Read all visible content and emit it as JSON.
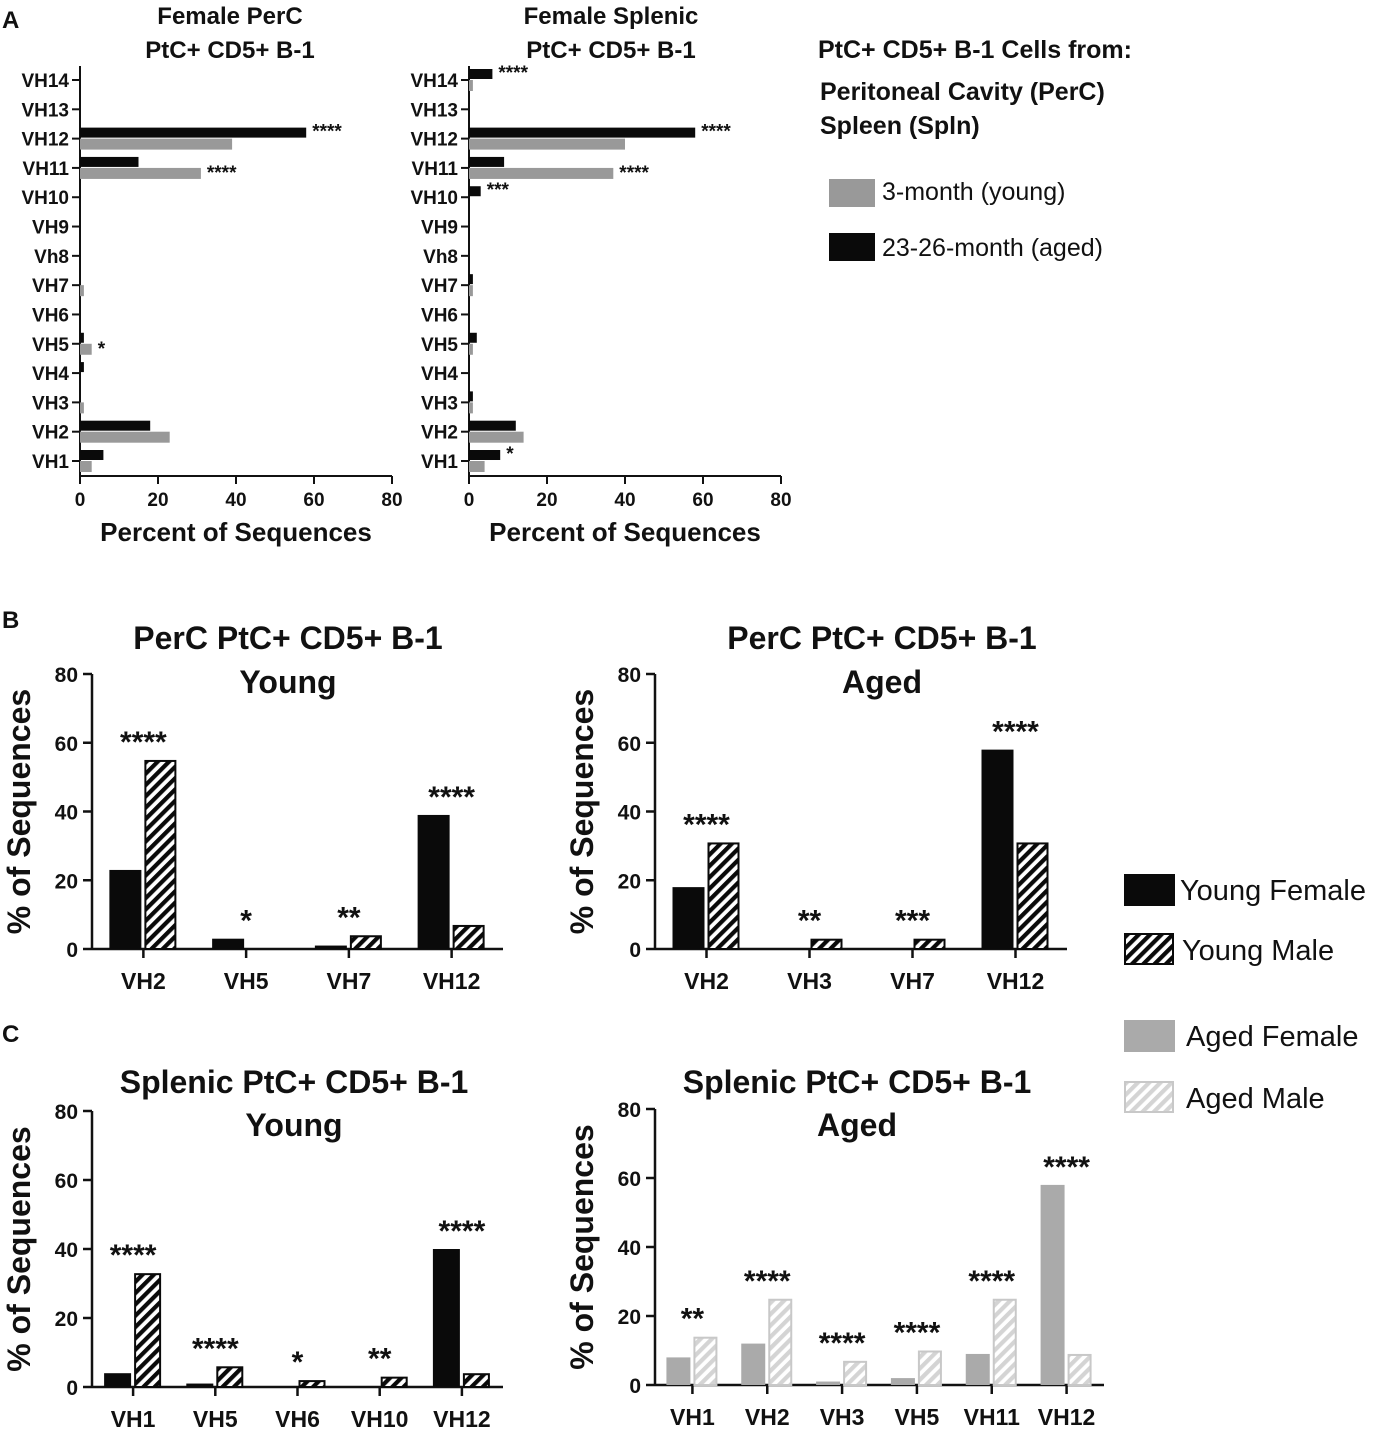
{
  "panel_labels": [
    "A",
    "B",
    "C"
  ],
  "colors": {
    "young": "#999999",
    "aged": "#0a0a0a",
    "hatch_dark": "#0a0a0a",
    "hatch_light": "#d4d4d4"
  },
  "legend_a": {
    "title": "PtC+ CD5+ B-1 Cells from:",
    "line1": "Peritoneal Cavity (PerC)",
    "line2": "Spleen (Spln)",
    "items": [
      "3-month (young)",
      "23-26-month (aged)"
    ]
  },
  "legend_bc": {
    "items": [
      "Young Female",
      "Young Male",
      "Aged Female",
      "Aged Male"
    ]
  },
  "chart_data": [
    {
      "id": "a1",
      "type": "bar",
      "orientation": "horizontal",
      "title": [
        "Female PerC",
        "PtC+ CD5+ B-1"
      ],
      "xlabel": "Percent of Sequences",
      "xlim": [
        0,
        80
      ],
      "xticks": [
        "0",
        "20",
        "40",
        "60",
        "80"
      ],
      "categories": [
        "VH14",
        "VH13",
        "VH12",
        "VH11",
        "VH10",
        "VH9",
        "Vh8",
        "VH7",
        "VH6",
        "VH5",
        "VH4",
        "VH3",
        "VH2",
        "VH1"
      ],
      "series": [
        {
          "name": "23-26-month (aged)",
          "values": [
            0,
            0,
            58,
            15,
            0,
            0,
            0,
            0,
            0,
            1,
            1,
            0,
            18,
            6
          ]
        },
        {
          "name": "3-month (young)",
          "values": [
            0,
            0,
            39,
            31,
            0,
            0,
            0,
            1,
            0,
            3,
            0,
            1,
            23,
            3
          ]
        }
      ],
      "annotations": [
        "",
        "",
        "****",
        "****",
        "",
        "",
        "",
        "",
        "",
        "*",
        "",
        "",
        "",
        ""
      ]
    },
    {
      "id": "a2",
      "type": "bar",
      "orientation": "horizontal",
      "title": [
        "Female Splenic",
        "PtC+ CD5+ B-1"
      ],
      "xlabel": "Percent of Sequences",
      "xlim": [
        0,
        80
      ],
      "xticks": [
        "0",
        "20",
        "40",
        "60",
        "80"
      ],
      "categories": [
        "VH14",
        "VH13",
        "VH12",
        "VH11",
        "VH10",
        "VH9",
        "Vh8",
        "VH7",
        "VH6",
        "VH5",
        "VH4",
        "VH3",
        "VH2",
        "VH1"
      ],
      "series": [
        {
          "name": "23-26-month (aged)",
          "values": [
            6,
            0,
            58,
            9,
            3,
            0,
            0,
            1,
            0,
            2,
            0,
            1,
            12,
            8
          ]
        },
        {
          "name": "3-month (young)",
          "values": [
            1,
            0,
            40,
            37,
            0,
            0,
            0,
            1,
            0,
            1,
            0,
            1,
            14,
            4
          ]
        }
      ],
      "annotations": [
        "****",
        "",
        "****",
        "****",
        "***",
        "",
        "",
        "",
        "",
        "",
        "",
        "",
        "",
        "*"
      ]
    },
    {
      "id": "b1",
      "type": "bar",
      "title": [
        "PerC PtC+ CD5+ B-1",
        "Young"
      ],
      "ylabel": "% of Sequences",
      "ylim": [
        0,
        80
      ],
      "yticks": [
        "0",
        "20",
        "40",
        "60",
        "80"
      ],
      "categories": [
        "VH2",
        "VH5",
        "VH7",
        "VH12"
      ],
      "series": [
        {
          "name": "Young Female",
          "values": [
            23,
            3,
            1,
            39
          ]
        },
        {
          "name": "Young Male",
          "values": [
            55,
            0,
            4,
            7
          ]
        }
      ],
      "annotations": [
        "****",
        "*",
        "**",
        "****"
      ]
    },
    {
      "id": "b2",
      "type": "bar",
      "title": [
        "PerC PtC+ CD5+ B-1",
        "Aged"
      ],
      "ylabel": "% of Sequences",
      "ylim": [
        0,
        80
      ],
      "yticks": [
        "0",
        "20",
        "40",
        "60",
        "80"
      ],
      "categories": [
        "VH2",
        "VH3",
        "VH7",
        "VH12"
      ],
      "series": [
        {
          "name": "Aged Female",
          "values": [
            18,
            0,
            0,
            58
          ]
        },
        {
          "name": "Aged Male",
          "values": [
            31,
            3,
            3,
            31
          ]
        }
      ],
      "annotations": [
        "****",
        "**",
        "***",
        "****"
      ]
    },
    {
      "id": "c1",
      "type": "bar",
      "title": [
        "Splenic PtC+ CD5+ B-1",
        "Young"
      ],
      "ylabel": "% of Sequences",
      "ylim": [
        0,
        80
      ],
      "yticks": [
        "0",
        "20",
        "40",
        "60",
        "80"
      ],
      "categories": [
        "VH1",
        "VH5",
        "VH6",
        "VH10",
        "VH12"
      ],
      "series": [
        {
          "name": "Young Female",
          "values": [
            4,
            1,
            0,
            0,
            40
          ]
        },
        {
          "name": "Young Male",
          "values": [
            33,
            6,
            2,
            3,
            4
          ]
        }
      ],
      "annotations": [
        "****",
        "****",
        "*",
        "**",
        "****"
      ]
    },
    {
      "id": "c2",
      "type": "bar",
      "title": [
        "Splenic PtC+ CD5+ B-1",
        "Aged"
      ],
      "ylabel": "% of Sequences",
      "ylim": [
        0,
        80
      ],
      "yticks": [
        "0",
        "20",
        "40",
        "60",
        "80"
      ],
      "categories": [
        "VH1",
        "VH2",
        "VH3",
        "VH5",
        "VH11",
        "VH12"
      ],
      "series": [
        {
          "name": "Aged Female",
          "values": [
            8,
            12,
            1,
            2,
            9,
            58
          ]
        },
        {
          "name": "Aged Male",
          "values": [
            14,
            25,
            7,
            10,
            25,
            9
          ]
        }
      ],
      "annotations": [
        "**",
        "****",
        "****",
        "****",
        "****",
        "****"
      ]
    }
  ]
}
